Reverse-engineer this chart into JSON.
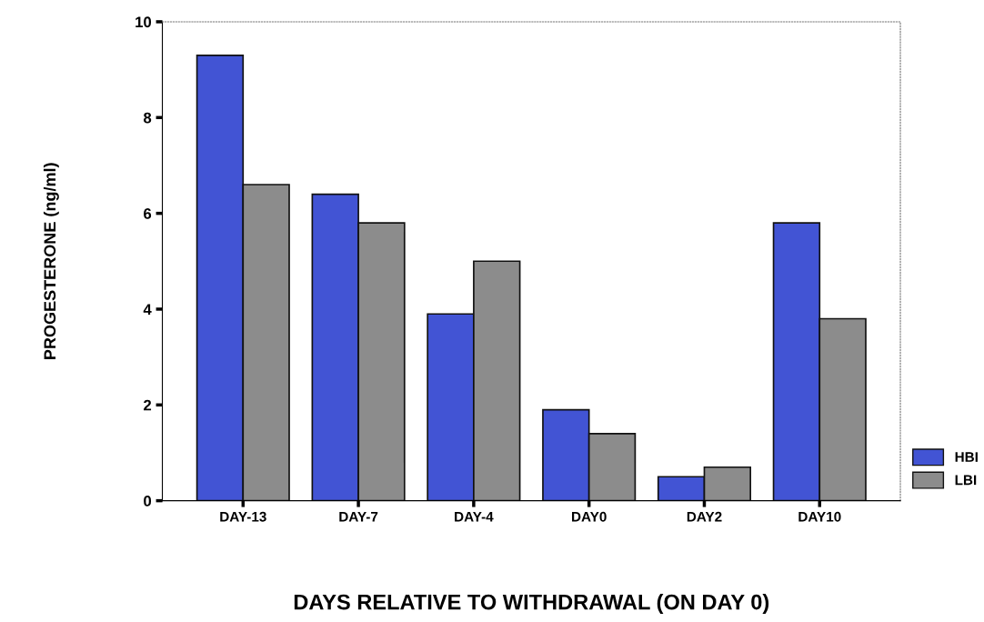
{
  "chart_data": {
    "type": "bar",
    "xlabel": "DAYS RELATIVE TO WITHDRAWAL (ON DAY 0)",
    "ylabel": "PROGESTERONE (ng/ml)",
    "categories": [
      "DAY-13",
      "DAY-7",
      "DAY-4",
      "DAY0",
      "DAY2",
      "DAY10"
    ],
    "series": [
      {
        "name": "HBI",
        "color": "#4254d4",
        "values": [
          9.3,
          6.4,
          3.9,
          1.9,
          0.5,
          5.8
        ]
      },
      {
        "name": "LBI",
        "color": "#8c8c8c",
        "values": [
          6.6,
          5.8,
          5.0,
          1.4,
          0.7,
          3.8
        ]
      }
    ],
    "ylim": [
      0,
      10
    ],
    "yticks": [
      0,
      2,
      4,
      6,
      8,
      10
    ],
    "grid": false,
    "legend": "bottom right"
  }
}
